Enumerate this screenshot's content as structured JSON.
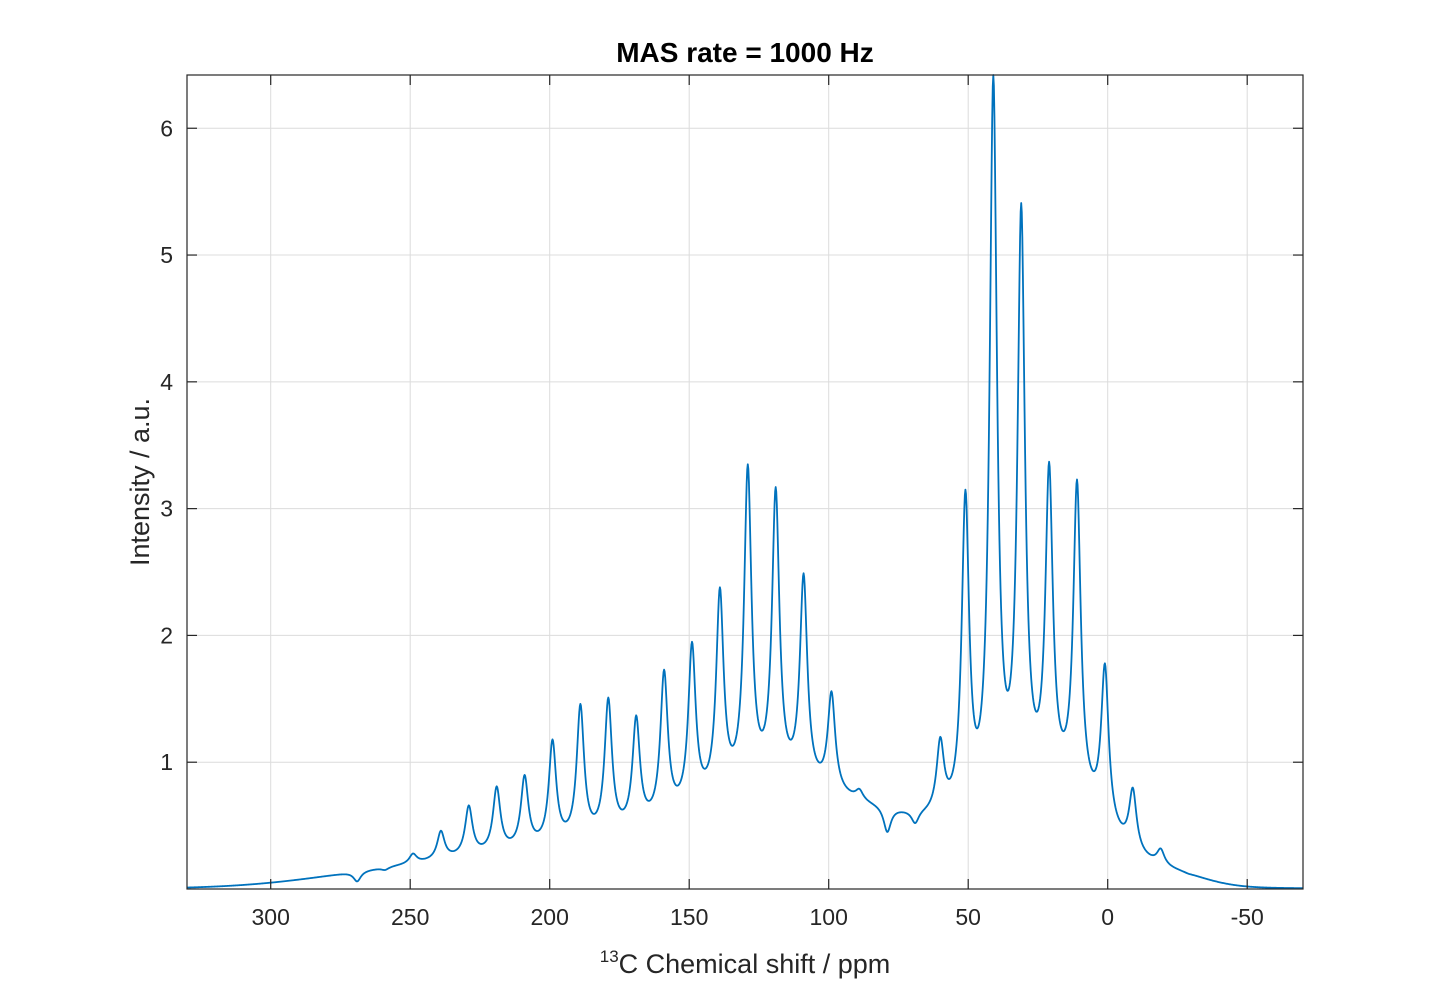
{
  "chart_data": {
    "type": "line",
    "title": "MAS rate = 1000 Hz",
    "xlabel_sup": "13",
    "xlabel": "C Chemical shift / ppm",
    "ylabel": "Intensity / a.u.",
    "xlim": [
      330,
      -70
    ],
    "x_reversed": true,
    "ylim": [
      0,
      6.42
    ],
    "xticks": [
      300,
      250,
      200,
      150,
      100,
      50,
      0,
      -50
    ],
    "xtick_labels": [
      "300",
      "250",
      "200",
      "150",
      "100",
      "50",
      "0",
      "-50"
    ],
    "yticks": [
      1,
      2,
      3,
      4,
      5,
      6
    ],
    "ytick_labels": [
      "1",
      "2",
      "3",
      "4",
      "5",
      "6"
    ],
    "grid": true,
    "color": "#0072BD",
    "series": [
      {
        "baseline": 0.0,
        "background": [
          {
            "amp": 0.05,
            "center": 260,
            "width": 40
          },
          {
            "amp": 0.3,
            "center": 185,
            "width": 75
          },
          {
            "amp": 0.6,
            "center": 115,
            "width": 45
          },
          {
            "amp": 0.35,
            "center": 55,
            "width": 40
          },
          {
            "amp": 0.55,
            "center": 15,
            "width": 22
          },
          {
            "amp": 0.1,
            "center": -22,
            "width": 18
          }
        ],
        "peaks": [
          {
            "x": 269,
            "y": 0.06
          },
          {
            "x": 259,
            "y": 0.15
          },
          {
            "x": 249,
            "y": 0.28
          },
          {
            "x": 239,
            "y": 0.46
          },
          {
            "x": 229,
            "y": 0.66
          },
          {
            "x": 219,
            "y": 0.81
          },
          {
            "x": 209,
            "y": 0.9
          },
          {
            "x": 199,
            "y": 1.18
          },
          {
            "x": 189,
            "y": 1.46
          },
          {
            "x": 179,
            "y": 1.51
          },
          {
            "x": 169,
            "y": 1.37
          },
          {
            "x": 159,
            "y": 1.73
          },
          {
            "x": 149,
            "y": 1.95
          },
          {
            "x": 139,
            "y": 2.38
          },
          {
            "x": 129,
            "y": 3.35
          },
          {
            "x": 119,
            "y": 3.17
          },
          {
            "x": 109,
            "y": 2.49
          },
          {
            "x": 99,
            "y": 1.56
          },
          {
            "x": 89,
            "y": 0.79
          },
          {
            "x": 79,
            "y": 0.45
          },
          {
            "x": 69,
            "y": 0.52
          },
          {
            "x": 60,
            "y": 1.2
          },
          {
            "x": 51,
            "y": 3.15
          },
          {
            "x": 41,
            "y": 6.42
          },
          {
            "x": 31,
            "y": 5.41
          },
          {
            "x": 21,
            "y": 3.37
          },
          {
            "x": 11,
            "y": 3.23
          },
          {
            "x": 1,
            "y": 1.78
          },
          {
            "x": -9,
            "y": 0.8
          },
          {
            "x": -19,
            "y": 0.32
          },
          {
            "x": -29,
            "y": 0.12
          }
        ]
      }
    ]
  }
}
